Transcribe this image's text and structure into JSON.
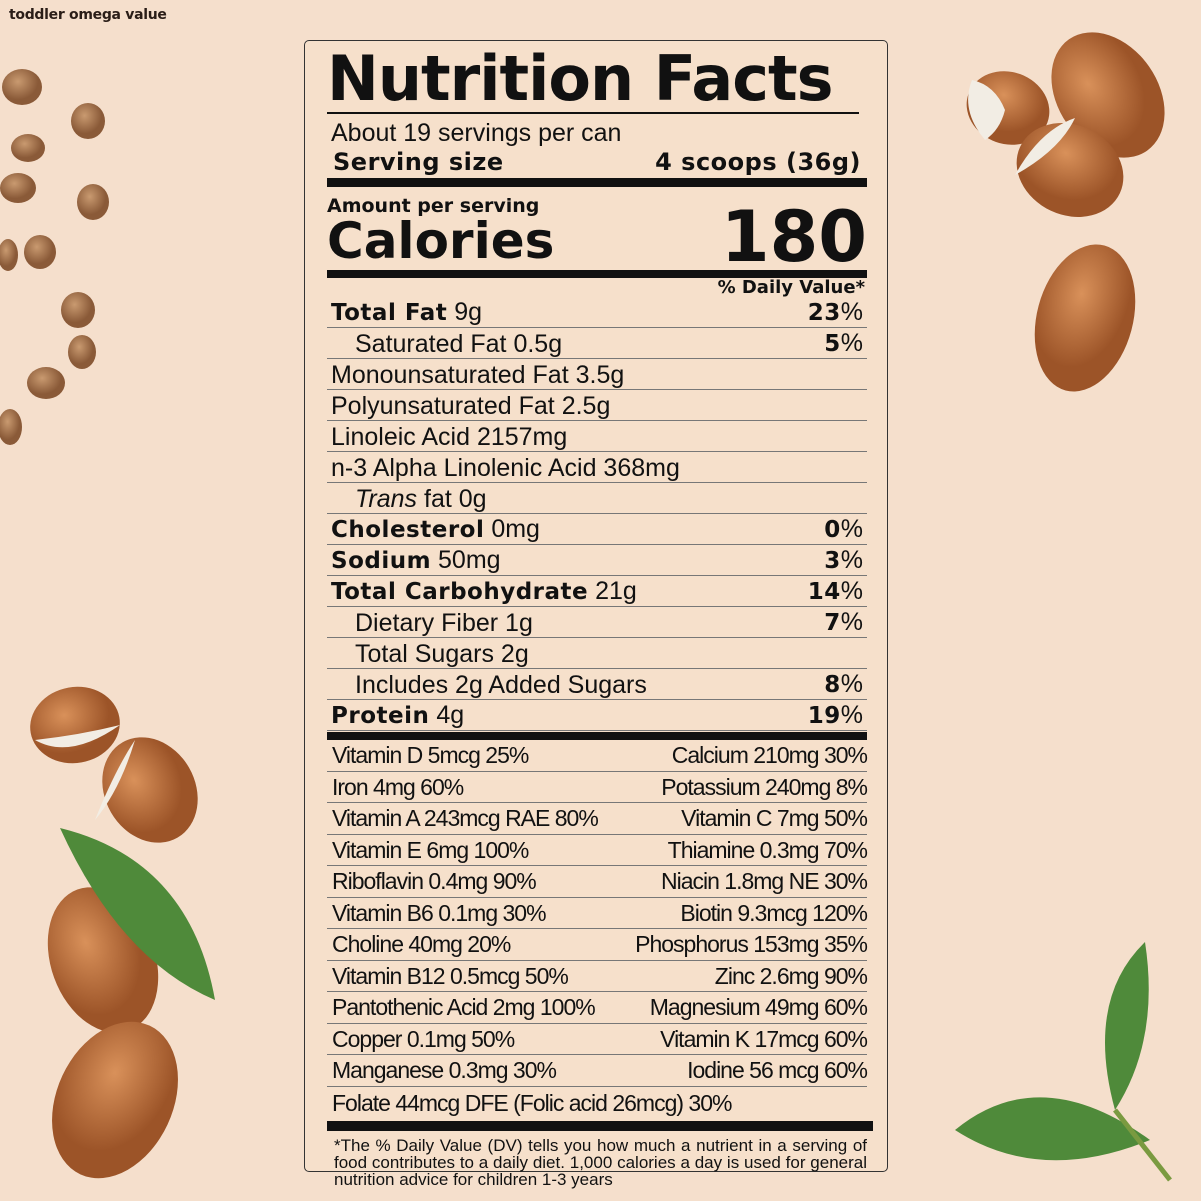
{
  "brand": "toddler omega value",
  "label": {
    "title": "Nutrition Facts",
    "servings": "About 19 servings per can",
    "serving_size_label": "Serving size",
    "serving_size_value": "4 scoops (36g)",
    "amount_per_serving": "Amount per serving",
    "calories_label": "Calories",
    "calories_value": "180",
    "dv_header": "% Daily Value*",
    "nutrients": [
      {
        "name": "Total Fat",
        "value": "9g",
        "dv": "23",
        "bold": true
      },
      {
        "name": "Saturated Fat",
        "value": "0.5g",
        "dv": "5",
        "indent": true
      },
      {
        "name": "Monounsaturated Fat",
        "value": "3.5g",
        "dv": ""
      },
      {
        "name": "Polyunsaturated Fat",
        "value": "2.5g",
        "dv": ""
      },
      {
        "name": "Linoleic Acid",
        "value": "2157mg",
        "dv": ""
      },
      {
        "name": "n-3 Alpha Linolenic Acid",
        "value": "368mg",
        "dv": ""
      },
      {
        "name": "Trans",
        "suffix": "fat",
        "value": "0g",
        "dv": "",
        "indent": true,
        "italic": true
      },
      {
        "name": "Cholesterol",
        "value": "0mg",
        "dv": "0",
        "bold": true
      },
      {
        "name": "Sodium",
        "value": "50mg",
        "dv": "3",
        "bold": true
      },
      {
        "name": "Total Carbohydrate",
        "value": "21g",
        "dv": "14",
        "bold": true
      },
      {
        "name": "Dietary Fiber",
        "value": "1g",
        "dv": "7",
        "indent": true
      },
      {
        "name": "Total Sugars",
        "value": "2g",
        "dv": "",
        "indent": true
      },
      {
        "name": "Includes 2g Added Sugars",
        "value": "",
        "dv": "8",
        "indent": true
      },
      {
        "name": "Protein",
        "value": "4g",
        "dv": "19",
        "bold": true
      }
    ],
    "vitamins": [
      [
        "Vitamin D 5mcg 25%",
        "Calcium 210mg 30%"
      ],
      [
        "Iron 4mg 60%",
        "Potassium 240mg 8%"
      ],
      [
        "Vitamin A 243mcg RAE 80%",
        "Vitamin C 7mg 50%"
      ],
      [
        "Vitamin E 6mg 100%",
        "Thiamine 0.3mg 70%"
      ],
      [
        "Riboflavin 0.4mg 90%",
        "Niacin 1.8mg NE 30%"
      ],
      [
        "Vitamin B6 0.1mg 30%",
        "Biotin 9.3mcg 120%"
      ],
      [
        "Choline 40mg 20%",
        "Phosphorus 153mg 35%"
      ],
      [
        "Vitamin B12 0.5mcg 50%",
        "Zinc 2.6mg 90%"
      ],
      [
        "Pantothenic Acid 2mg 100%",
        "Magnesium 49mg 60%"
      ],
      [
        "Copper 0.1mg 50%",
        "Vitamin K 17mcg 60%"
      ],
      [
        "Manganese 0.3mg 30%",
        "Iodine 56 mcg 60%"
      ]
    ],
    "folate": "Folate 44mcg DFE  (Folic acid 26mcg)  30%",
    "footnote": "*The % Daily Value (DV) tells you how much a nutrient in a serving of food contributes to a daily diet. 1,000 calories a day is used for general nutrition advice for children 1-3 years"
  },
  "colors": {
    "background": "#f5dfcc",
    "almond": "#b8693a",
    "hazelnut": "#a8714a",
    "leaf": "#4f8a3a"
  }
}
